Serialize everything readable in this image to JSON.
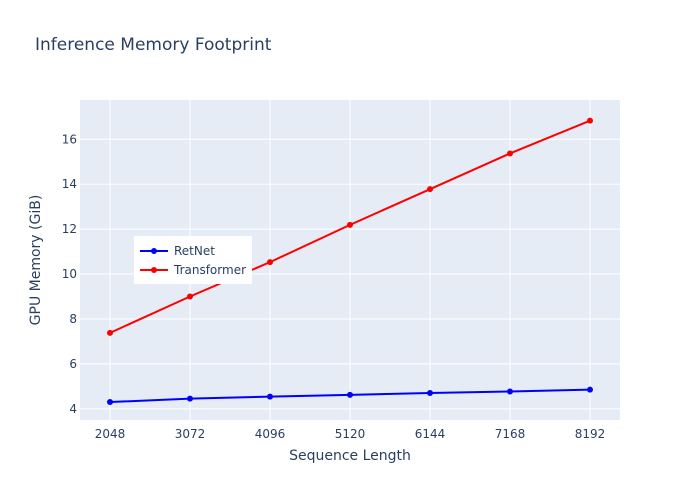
{
  "chart_data": {
    "type": "line",
    "title": "Inference Memory Footprint",
    "xlabel": "Sequence Length",
    "ylabel": "GPU Memory (GiB)",
    "x": [
      2048,
      3072,
      4096,
      5120,
      6144,
      7168,
      8192
    ],
    "x_tick_labels": [
      "2048",
      "3072",
      "4096",
      "5120",
      "6144",
      "7168",
      "8192"
    ],
    "xlim": [
      1664,
      8576
    ],
    "ylim": [
      3.5,
      17.75
    ],
    "y_ticks": [
      4,
      6,
      8,
      10,
      12,
      14,
      16
    ],
    "y_tick_labels": [
      "4",
      "6",
      "8",
      "10",
      "12",
      "14",
      "16"
    ],
    "grid": true,
    "legend_position": "left",
    "background": "#e5ecf6",
    "series": [
      {
        "name": "RetNet",
        "color": "#0000ff",
        "values": [
          4.3,
          4.45,
          4.54,
          4.62,
          4.7,
          4.77,
          4.85
        ]
      },
      {
        "name": "Transformer",
        "color": "#ff0000",
        "values": [
          7.38,
          9.0,
          10.53,
          12.19,
          13.78,
          15.37,
          16.83
        ]
      }
    ]
  }
}
